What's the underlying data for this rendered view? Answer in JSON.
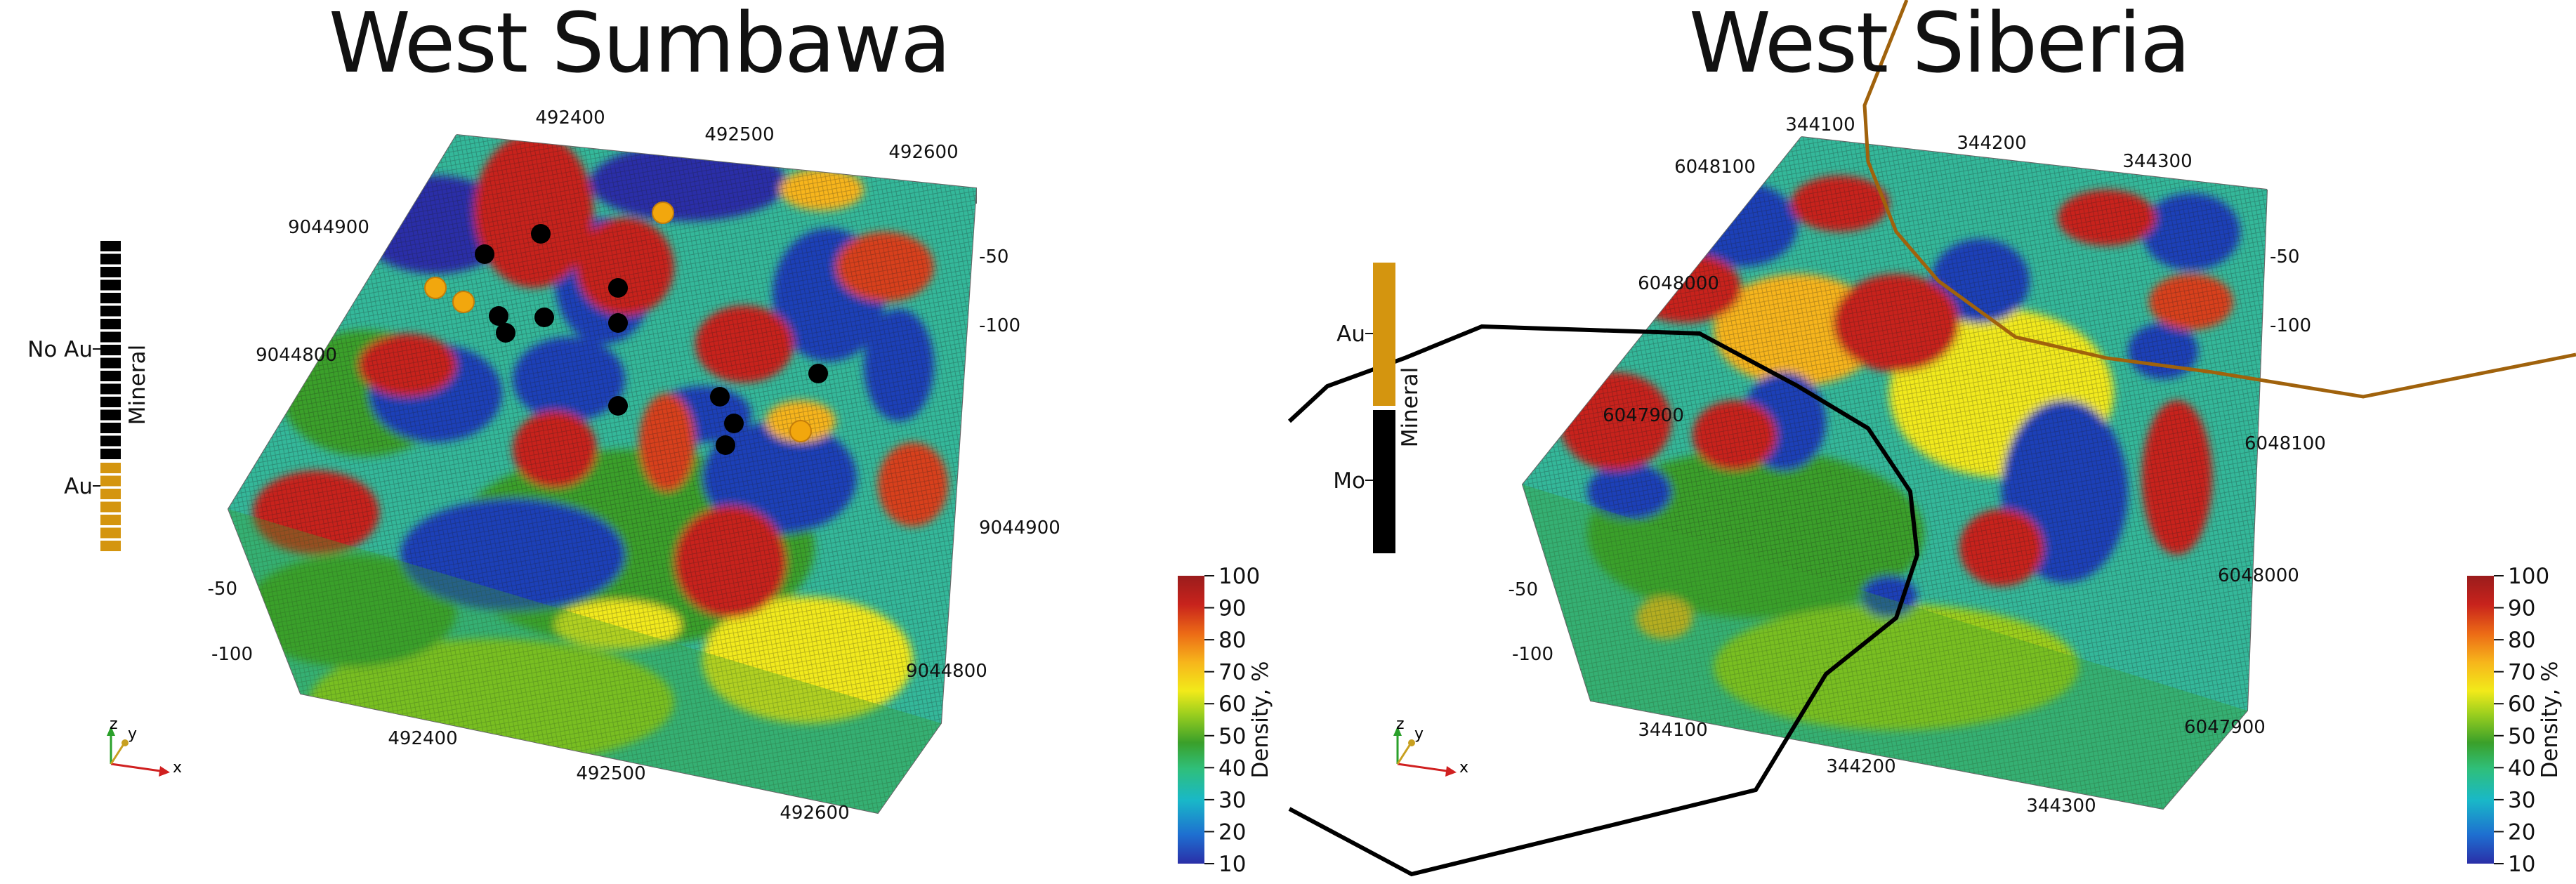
{
  "panels": [
    {
      "title": "West Sumbawa",
      "top_ticks": [
        "492400",
        "492500",
        "492600"
      ],
      "left_ticks": [
        "9044900",
        "9044800"
      ],
      "right_depth_ticks": [
        "-50",
        "-100"
      ],
      "left_depth_ticks": [
        "-50",
        "-100"
      ],
      "right_ticks": [
        "9044900",
        "9044800"
      ],
      "bottom_ticks": [
        "492400",
        "492500",
        "492600"
      ],
      "legend": {
        "title": "Mineral",
        "labels": [
          "No Au",
          "Au"
        ],
        "colors": [
          "#000000",
          "#d4950f"
        ]
      },
      "markers": {
        "black_count": 13,
        "gold_count": 4
      }
    },
    {
      "title": "West Siberia",
      "top_ticks": [
        "344100",
        "344200",
        "344300"
      ],
      "left_ticks": [
        "6048100",
        "6048000",
        "6047900"
      ],
      "right_depth_ticks": [
        "-50",
        "-100"
      ],
      "left_depth_ticks": [
        "-50",
        "-100"
      ],
      "right_ticks": [
        "6048100",
        "6048000",
        "6047900"
      ],
      "bottom_ticks": [
        "344100",
        "344200",
        "344300"
      ],
      "legend": {
        "title": "Mineral",
        "labels": [
          "Au",
          "Mo"
        ],
        "colors": [
          "#d4950f",
          "#000000"
        ]
      },
      "traces": [
        "#000000",
        "#a0620c"
      ]
    }
  ],
  "colorbar": {
    "title": "Density, %",
    "ticks": [
      "100",
      "90",
      "80",
      "70",
      "60",
      "50",
      "40",
      "30",
      "20",
      "10"
    ],
    "colors": [
      "#2a2fa8",
      "#1e6fd0",
      "#19b8c8",
      "#2fbf7a",
      "#3aa02a",
      "#9ccf1e",
      "#f2ea1a",
      "#f7b51b",
      "#ec6a16",
      "#c8231c",
      "#9a1c1c"
    ]
  },
  "orientation_axes": {
    "x": "x",
    "y": "y",
    "z": "z"
  }
}
